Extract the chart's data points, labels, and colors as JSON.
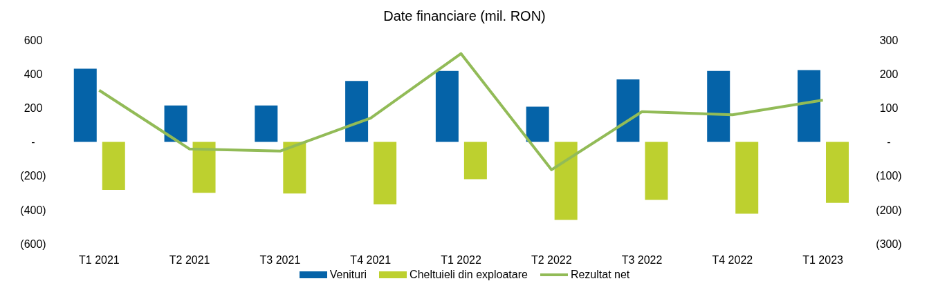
{
  "chart_data": {
    "type": "bar",
    "title": "Date financiare (mil. RON)",
    "categories": [
      "T1 2021",
      "T2 2021",
      "T3 2021",
      "T4 2021",
      "T1 2022",
      "T2 2022",
      "T3 2022",
      "T4 2022",
      "T1 2023"
    ],
    "series": [
      {
        "name": "Venituri",
        "color": "#0563a8",
        "values": [
          431,
          215,
          215,
          359,
          418,
          207,
          368,
          418,
          423
        ]
      },
      {
        "name": "Cheltuieli din exploatare",
        "color": "#bdd02f",
        "values": [
          -283,
          -300,
          -304,
          -368,
          -220,
          -460,
          -342,
          -423,
          -359
        ]
      },
      {
        "name": "Rezultat net",
        "type": "line",
        "axis": "y2",
        "color": "#92bb57",
        "values": [
          152,
          -21,
          -27,
          70,
          260,
          -82,
          89,
          80,
          123
        ]
      }
    ],
    "ylim": [
      -600,
      600
    ],
    "yticks": [
      {
        "value": -600,
        "label": "(600)"
      },
      {
        "value": -400,
        "label": "(400)"
      },
      {
        "value": -200,
        "label": "(200)"
      },
      {
        "value": 0,
        "label": "-"
      },
      200,
      400,
      600
    ],
    "y2lim": [
      -300,
      300
    ],
    "y2ticks": [
      {
        "value": -300,
        "label": "(300)"
      },
      {
        "value": -200,
        "label": "(200)"
      },
      {
        "value": -100,
        "label": "(100)"
      },
      {
        "value": 0,
        "label": "-"
      },
      100,
      200,
      300
    ],
    "legend": "bottom",
    "marker": "none"
  }
}
